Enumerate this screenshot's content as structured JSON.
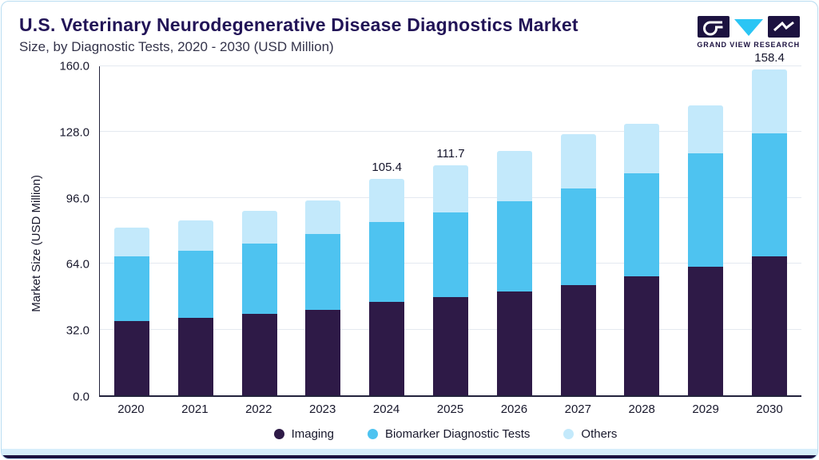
{
  "header": {
    "title": "U.S. Veterinary Neurodegenerative Disease Diagnostics Market",
    "subtitle": "Size, by Diagnostic Tests, 2020 - 2030 (USD Million)",
    "logo_text": "GRAND VIEW RESEARCH"
  },
  "colors": {
    "imaging": "#2e1a47",
    "biomarker": "#4ec3f0",
    "others": "#c3e9fb",
    "accent_navy": "#1c1240",
    "accent_cyan": "#2bc5f4",
    "grid": "#e4e9f0",
    "axis": "#23233c"
  },
  "chart_data": {
    "type": "bar",
    "stacked": true,
    "title": "U.S. Veterinary Neurodegenerative Disease Diagnostics Market Size, by Diagnostic Tests, 2020 - 2030 (USD Million)",
    "xlabel": "",
    "ylabel": "Market Size (USD Million)",
    "ylim": [
      0,
      160
    ],
    "grid": true,
    "legend_position": "bottom",
    "yticks": [
      {
        "value": 0,
        "label": "0.0"
      },
      {
        "value": 32,
        "label": "32.0"
      },
      {
        "value": 64,
        "label": "64.0"
      },
      {
        "value": 96,
        "label": "96.0"
      },
      {
        "value": 128,
        "label": "128.0"
      },
      {
        "value": 160,
        "label": "160.0"
      }
    ],
    "categories": [
      "2020",
      "2021",
      "2022",
      "2023",
      "2024",
      "2025",
      "2026",
      "2027",
      "2028",
      "2029",
      "2030"
    ],
    "series": [
      {
        "name": "Imaging",
        "color": "#2e1a47",
        "values": [
          36.2,
          37.6,
          39.5,
          41.5,
          45.5,
          47.8,
          50.4,
          53.6,
          57.8,
          62.4,
          67.4
        ]
      },
      {
        "name": "Biomarker Diagnostic Tests",
        "color": "#4ec3f0",
        "values": [
          31.4,
          32.8,
          34.3,
          36.8,
          38.9,
          41.1,
          43.9,
          47.0,
          50.2,
          55.1,
          60.1
        ]
      },
      {
        "name": "Others",
        "color": "#c3e9fb",
        "values": [
          14.1,
          14.6,
          16.1,
          16.6,
          21.0,
          22.8,
          24.6,
          26.5,
          24.1,
          23.6,
          30.9
        ]
      }
    ],
    "annotations": [
      {
        "category": "2024",
        "text": "105.4"
      },
      {
        "category": "2025",
        "text": "111.7"
      },
      {
        "category": "2030",
        "text": "158.4"
      }
    ]
  },
  "legend": [
    {
      "label": "Imaging",
      "color": "#2e1a47"
    },
    {
      "label": "Biomarker Diagnostic Tests",
      "color": "#4ec3f0"
    },
    {
      "label": "Others",
      "color": "#c3e9fb"
    }
  ]
}
